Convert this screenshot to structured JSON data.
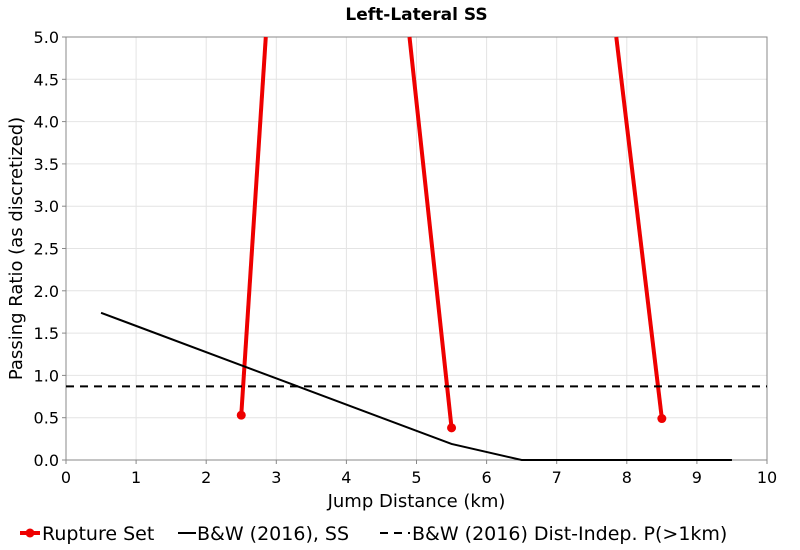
{
  "chart_data": {
    "type": "line",
    "title": "Left-Lateral SS",
    "xlabel": "Jump Distance (km)",
    "ylabel": "Passing Ratio (as discretized)",
    "xlim": [
      0,
      10
    ],
    "ylim": [
      0,
      5
    ],
    "x_ticks": [
      "0",
      "1",
      "2",
      "3",
      "4",
      "5",
      "6",
      "7",
      "8",
      "9",
      "10"
    ],
    "y_ticks": [
      "0.0",
      "0.5",
      "1.0",
      "1.5",
      "2.0",
      "2.5",
      "3.0",
      "3.5",
      "4.0",
      "4.5",
      "5.0"
    ],
    "grid": true,
    "series": [
      {
        "name": "Rupture Set",
        "style": "solid-marker",
        "color": "#ee0000",
        "segments": [
          [
            {
              "x": 2.5,
              "y": 0.53
            },
            {
              "x": 2.85,
              "y": 5.0
            }
          ],
          [
            {
              "x": 5.5,
              "y": 0.38
            },
            {
              "x": 4.9,
              "y": 5.0
            }
          ],
          [
            {
              "x": 8.5,
              "y": 0.49
            },
            {
              "x": 7.85,
              "y": 5.0
            }
          ]
        ]
      },
      {
        "name": "B&W (2016), SS",
        "style": "solid",
        "color": "#000000",
        "points": [
          {
            "x": 0.5,
            "y": 1.74
          },
          {
            "x": 5.5,
            "y": 0.19
          },
          {
            "x": 6.5,
            "y": 0.0
          },
          {
            "x": 9.5,
            "y": 0.0
          }
        ]
      },
      {
        "name": "B&W (2016) Dist-Indep. P(>1km)",
        "style": "dashed",
        "color": "#000000",
        "points": [
          {
            "x": 0.0,
            "y": 0.87
          },
          {
            "x": 10.0,
            "y": 0.87
          }
        ]
      }
    ]
  }
}
